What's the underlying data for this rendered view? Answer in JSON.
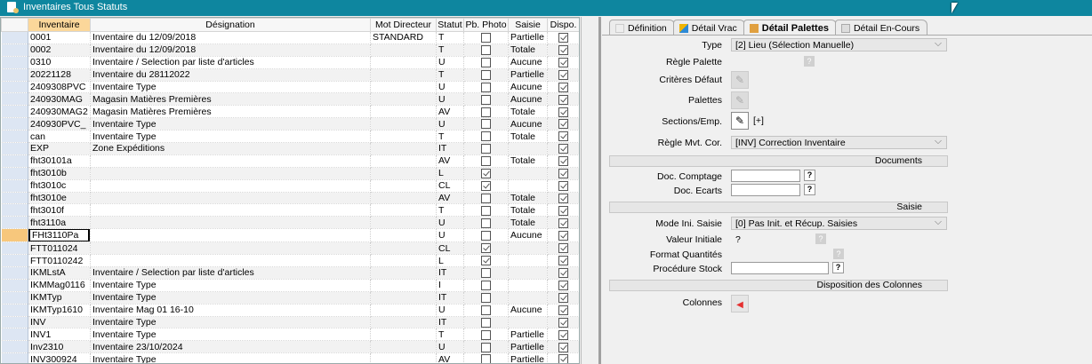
{
  "window": {
    "title": "Inventaires Tous Statuts"
  },
  "grid": {
    "columns": [
      "Inventaire",
      "Désignation",
      "Mot Directeur",
      "Statut",
      "Pb. Photo",
      "Saisie",
      "Dispo."
    ],
    "rows": [
      [
        "0001",
        "Inventaire du 12/09/2018",
        "STANDARD",
        "T",
        false,
        "Partielle",
        true
      ],
      [
        "0002",
        "Inventaire du 12/09/2018",
        "",
        "T",
        false,
        "Totale",
        true
      ],
      [
        "0310",
        "Inventaire / Selection par liste d'articles",
        "",
        "U",
        false,
        "Aucune",
        true
      ],
      [
        "20221128",
        "Inventaire du 28112022",
        "",
        "T",
        false,
        "Partielle",
        true
      ],
      [
        "2409308PVC",
        "Inventaire Type",
        "",
        "U",
        false,
        "Aucune",
        true
      ],
      [
        "240930MAG",
        "Magasin Matières Premières",
        "",
        "U",
        false,
        "Aucune",
        true
      ],
      [
        "240930MAG2",
        "Magasin Matières Premières",
        "",
        "AV",
        false,
        "Totale",
        true
      ],
      [
        "240930PVC_",
        "Inventaire Type",
        "",
        "U",
        false,
        "Aucune",
        true
      ],
      [
        "can",
        "Inventaire Type",
        "",
        "T",
        false,
        "Totale",
        true
      ],
      [
        "EXP",
        "Zone Expéditions",
        "",
        "IT",
        false,
        "",
        true
      ],
      [
        "fht30101a",
        "",
        "",
        "AV",
        false,
        "Totale",
        true
      ],
      [
        "fht3010b",
        "",
        "",
        "L",
        true,
        "",
        true
      ],
      [
        "fht3010c",
        "",
        "",
        "CL",
        true,
        "",
        true
      ],
      [
        "fht3010e",
        "",
        "",
        "AV",
        false,
        "Totale",
        true
      ],
      [
        "fht3010f",
        "",
        "",
        "T",
        false,
        "Totale",
        true
      ],
      [
        "fht3110a",
        "",
        "",
        "U",
        false,
        "Totale",
        true
      ],
      [
        "FHt3110Pa",
        "",
        "",
        "U",
        false,
        "Aucune",
        true
      ],
      [
        "FTT011024",
        "",
        "",
        "CL",
        true,
        "",
        true
      ],
      [
        "FTT0110242",
        "",
        "",
        "L",
        true,
        "",
        true
      ],
      [
        "IKMLstA",
        "Inventaire / Selection par liste d'articles",
        "",
        "IT",
        false,
        "",
        true
      ],
      [
        "IKMMag0116",
        "Inventaire Type",
        "",
        "I",
        false,
        "",
        true
      ],
      [
        "IKMTyp",
        "Inventaire Type",
        "",
        "IT",
        false,
        "",
        true
      ],
      [
        "IKMTyp1610",
        "Inventaire Mag 01 16-10",
        "",
        "U",
        false,
        "Aucune",
        true
      ],
      [
        "INV",
        "Inventaire Type",
        "",
        "IT",
        false,
        "",
        true
      ],
      [
        "INV1",
        "Inventaire Type",
        "",
        "T",
        false,
        "Partielle",
        true
      ],
      [
        "Inv2310",
        "Inventaire 23/10/2024",
        "",
        "U",
        false,
        "Partielle",
        true
      ],
      [
        "INV300924",
        "Inventaire Type",
        "",
        "AV",
        false,
        "Partielle",
        true
      ]
    ],
    "current_row": 16
  },
  "tabs": [
    {
      "label": "Définition"
    },
    {
      "label": "Détail Vrac"
    },
    {
      "label": "Détail Palettes",
      "active": true
    },
    {
      "label": "Détail En-Cours"
    }
  ],
  "form": {
    "type_label": "Type",
    "type_value": "[2] Lieu (Sélection Manuelle)",
    "regle_palette_label": "Règle Palette",
    "criteres_label": "Critères Défaut",
    "palettes_label": "Palettes",
    "sections_label": "Sections/Emp.",
    "sections_extra": "[+]",
    "regle_mvt_label": "Règle Mvt. Cor.",
    "regle_mvt_value": "[INV] Correction Inventaire",
    "documents_header": "Documents",
    "doc_comptage_label": "Doc. Comptagе",
    "doc_comptage_value": "",
    "doc_ecarts_label": "Doc. Ecarts",
    "doc_ecarts_value": "",
    "saisie_header": "Saisie",
    "mode_label": "Mode Ini. Saisie",
    "mode_value": "[0] Pas Init. et Récup. Saisies",
    "valeur_label": "Valeur Initiale",
    "valeur_value": "?",
    "format_label": "Format Quantités",
    "procedure_label": "Procédure Stock",
    "procedure_value": "",
    "disposition_header": "Disposition des Colonnes",
    "colonnes_label": "Colonnes",
    "help": "?"
  },
  "colors": {
    "titlebar": "#0e869f",
    "sorted_header": "#fbd79a",
    "current_row": "#f7c77c"
  }
}
